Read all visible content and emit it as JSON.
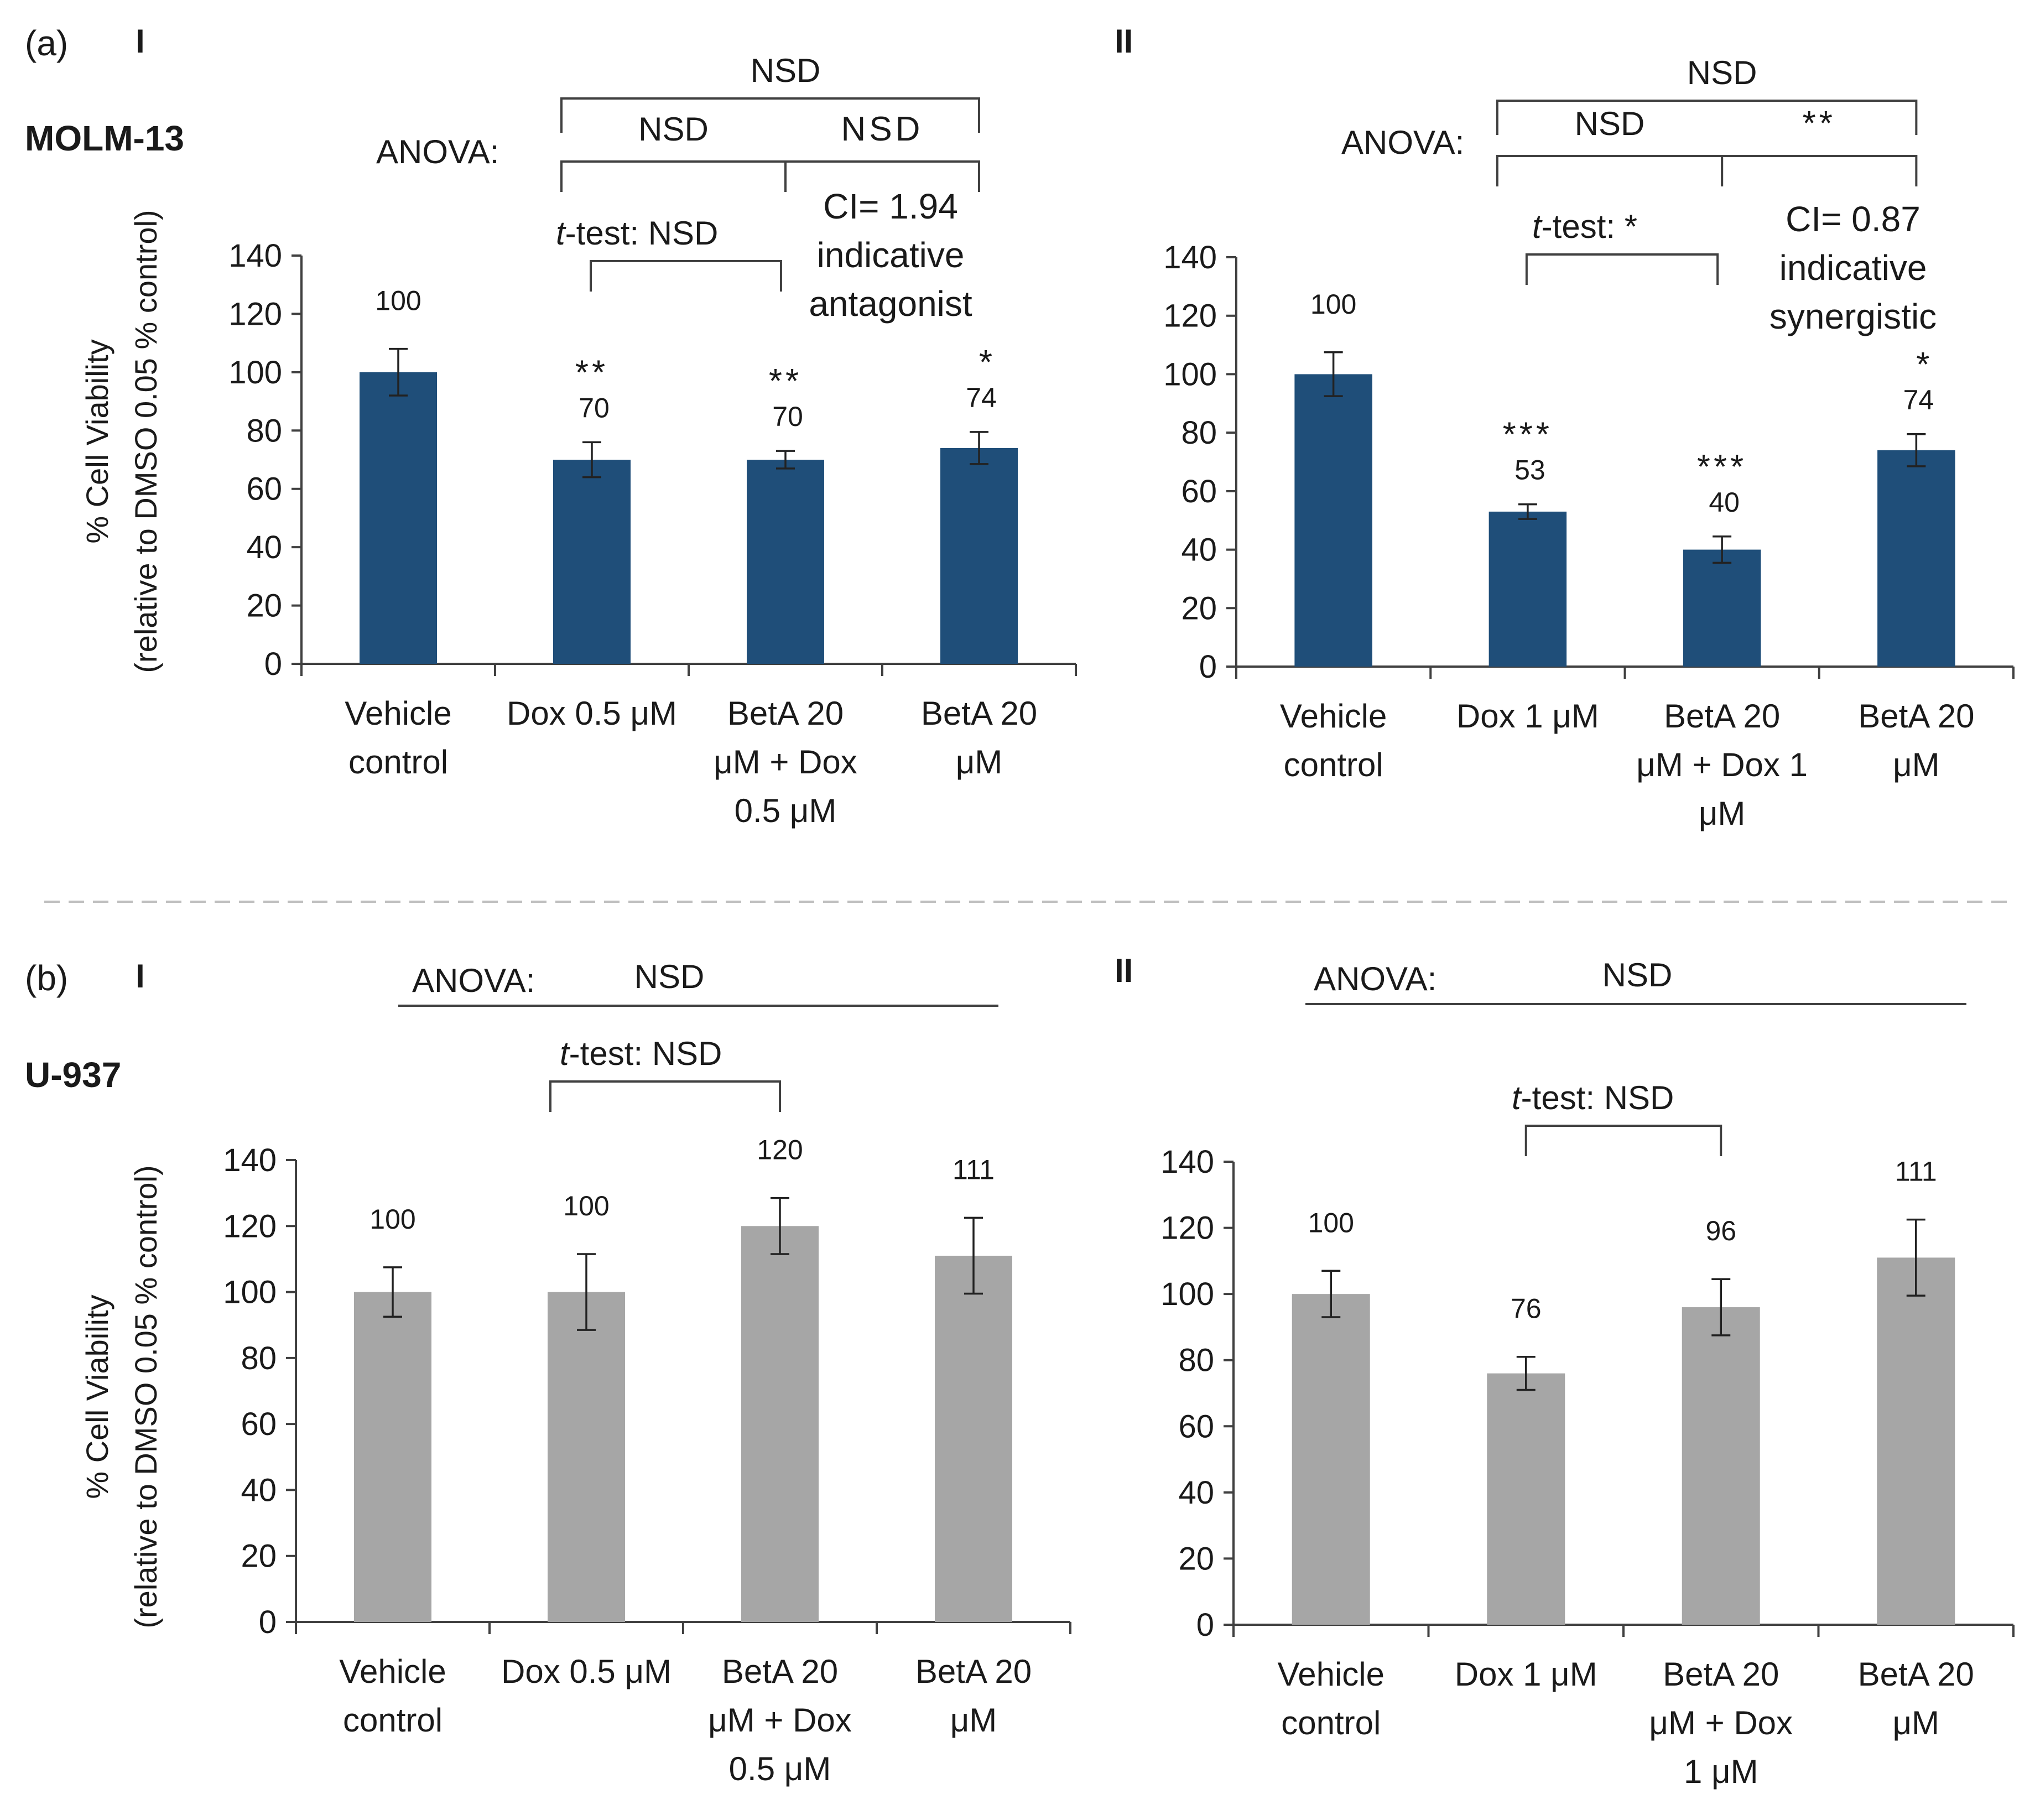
{
  "figure": {
    "panel_a_label": "(a)",
    "panel_b_label": "(b)",
    "row_a_cell_line": "MOLM-13",
    "row_b_cell_line": "U-937",
    "y_axis_label_line1": "% Cell  Viability",
    "y_axis_label_line2": "(relative to DMSO 0.05 % control)"
  },
  "colors": {
    "molm13_bar": "#1f4e79",
    "u937_bar": "#a6a6a6",
    "axis": "#404040",
    "text": "#1a1a1a",
    "divider": "#bfbfbf"
  },
  "chart_data": [
    {
      "type": "bar",
      "id": "aI",
      "panel": "I",
      "cell_line": "MOLM-13",
      "categories": [
        [
          "Vehicle",
          "control"
        ],
        [
          "Dox 0.5 μM"
        ],
        [
          "BetA 20",
          "μM + Dox",
          "0.5 μM"
        ],
        [
          "BetA 20",
          "μM"
        ]
      ],
      "values": [
        100,
        70,
        70,
        74
      ],
      "errors": [
        8,
        6,
        3,
        5.5
      ],
      "value_labels": [
        "100",
        "70",
        "70",
        "74"
      ],
      "significance": [
        "",
        "**",
        "**",
        "*"
      ],
      "ylim": [
        0,
        140
      ],
      "yticks": [
        0,
        20,
        40,
        60,
        80,
        100,
        120,
        140
      ],
      "color": "#1f4e79",
      "anova_label": "ANOVA:",
      "anova_outer": "NSD",
      "anova_left": "NSD",
      "anova_right": "NSD",
      "ttest_label": "t",
      "ttest_suffix": "-test: NSD",
      "ci_lines": [
        "CI= 1.94",
        "indicative",
        "antagonist"
      ]
    },
    {
      "type": "bar",
      "id": "aII",
      "panel": "II",
      "cell_line": "MOLM-13",
      "categories": [
        [
          "Vehicle",
          "control"
        ],
        [
          "Dox 1 μM"
        ],
        [
          "BetA 20",
          "μM + Dox 1",
          "μM"
        ],
        [
          "BetA 20",
          "μM"
        ]
      ],
      "values": [
        100,
        53,
        40,
        74
      ],
      "errors": [
        7.5,
        2.5,
        4.5,
        5.5
      ],
      "value_labels": [
        "100",
        "53",
        "40",
        "74"
      ],
      "significance": [
        "",
        "***",
        "***",
        "*"
      ],
      "ylim": [
        0,
        140
      ],
      "yticks": [
        0,
        20,
        40,
        60,
        80,
        100,
        120,
        140
      ],
      "color": "#1f4e79",
      "anova_label": "ANOVA:",
      "anova_outer": "NSD",
      "anova_left": "NSD",
      "anova_right": "**",
      "ttest_label": "t",
      "ttest_suffix": "-test:  *",
      "ci_lines": [
        "CI= 0.87",
        "indicative",
        "synergistic"
      ]
    },
    {
      "type": "bar",
      "id": "bI",
      "panel": "I",
      "cell_line": "U-937",
      "categories": [
        [
          "Vehicle",
          "control"
        ],
        [
          "Dox 0.5 μM"
        ],
        [
          "BetA 20",
          "μM + Dox",
          "0.5 μM"
        ],
        [
          "BetA 20",
          "μM"
        ]
      ],
      "values": [
        100,
        100,
        120,
        111
      ],
      "errors": [
        7.5,
        11.5,
        8.5,
        11.5
      ],
      "value_labels": [
        "100",
        "100",
        "120",
        "111"
      ],
      "ylim": [
        0,
        140
      ],
      "yticks": [
        0,
        20,
        40,
        60,
        80,
        100,
        120,
        140
      ],
      "color": "#a6a6a6",
      "anova_label": "ANOVA:",
      "anova_result": "NSD",
      "ttest_label": "t",
      "ttest_suffix": "-test: NSD"
    },
    {
      "type": "bar",
      "id": "bII",
      "panel": "II",
      "cell_line": "U-937",
      "categories": [
        [
          "Vehicle",
          "control"
        ],
        [
          "Dox 1 μM"
        ],
        [
          "BetA 20",
          "μM + Dox",
          "1 μM"
        ],
        [
          "BetA 20",
          "μM"
        ]
      ],
      "values": [
        100,
        76,
        96,
        111
      ],
      "errors": [
        7,
        5,
        8.5,
        11.5
      ],
      "value_labels": [
        "100",
        "76",
        "96",
        "111"
      ],
      "ylim": [
        0,
        140
      ],
      "yticks": [
        0,
        20,
        40,
        60,
        80,
        100,
        120,
        140
      ],
      "color": "#a6a6a6",
      "anova_label": "ANOVA:",
      "anova_result": "NSD",
      "ttest_label": "t",
      "ttest_suffix": "-test: NSD"
    }
  ]
}
